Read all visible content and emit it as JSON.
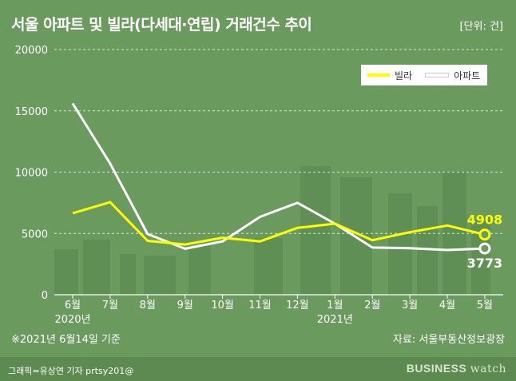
{
  "title": "서울 아파트 및 빌라(다세대·연립) 거래건수 추이",
  "unit": "[단위: 건]",
  "note": "※2021년 6월14일 기준",
  "source": "자료: 서울부동산정보광장",
  "credit": "그래픽=유상연 기자 prtsy201@",
  "brand": {
    "part1": "BUSINESS",
    "part2": "watch"
  },
  "colors": {
    "villa": "#ffff00",
    "apartment": "#ffffff",
    "background": "#6a9a5e"
  },
  "chart_data": {
    "type": "line",
    "categories": [
      "6월",
      "7월",
      "8월",
      "9월",
      "10월",
      "11월",
      "12월",
      "1월",
      "2월",
      "3월",
      "4월",
      "5월"
    ],
    "year_labels": [
      {
        "index": 0,
        "label": "2020년"
      },
      {
        "index": 7,
        "label": "2021년"
      }
    ],
    "yticks": [
      0,
      5000,
      10000,
      15000,
      20000
    ],
    "ylim": [
      0,
      20000
    ],
    "grid": true,
    "legend_position": "top-right",
    "series": [
      {
        "name": "빌라",
        "color": "#ffff00",
        "values": [
          6650,
          7550,
          4400,
          4100,
          4650,
          4350,
          5450,
          5800,
          4450,
          5100,
          5650,
          4908
        ]
      },
      {
        "name": "아파트",
        "color": "#ffffff",
        "values": [
          15600,
          10700,
          4950,
          3750,
          4350,
          6350,
          7500,
          5800,
          3850,
          3800,
          3650,
          3773
        ]
      }
    ],
    "end_labels": [
      {
        "series": 0,
        "label": "4908"
      },
      {
        "series": 1,
        "label": "3773"
      }
    ]
  }
}
